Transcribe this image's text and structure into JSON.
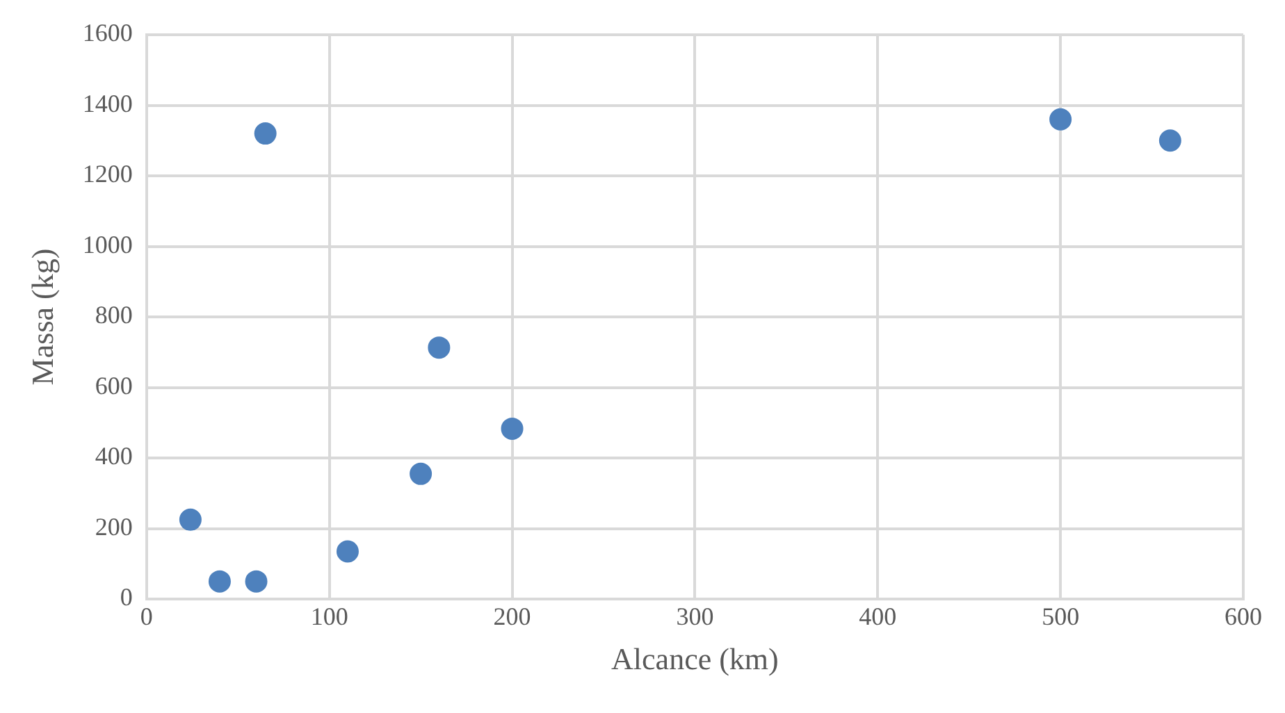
{
  "chart_data": {
    "type": "scatter",
    "xlabel": "Alcance (km)",
    "ylabel": "Massa (kg)",
    "x": [
      24,
      40,
      60,
      65,
      110,
      150,
      160,
      200,
      500,
      560
    ],
    "values": [
      225,
      50,
      50,
      1320,
      135,
      355,
      713,
      483,
      1360,
      1300
    ],
    "color": "#4e81bd",
    "marker": "circle",
    "xlim": [
      0,
      600
    ],
    "xticks": [
      0,
      100,
      200,
      300,
      400,
      500,
      600
    ],
    "ylim": [
      0,
      1600
    ],
    "yticks": [
      0,
      200,
      400,
      600,
      800,
      1000,
      1200,
      1400,
      1600
    ],
    "grid": true,
    "legend": false
  }
}
